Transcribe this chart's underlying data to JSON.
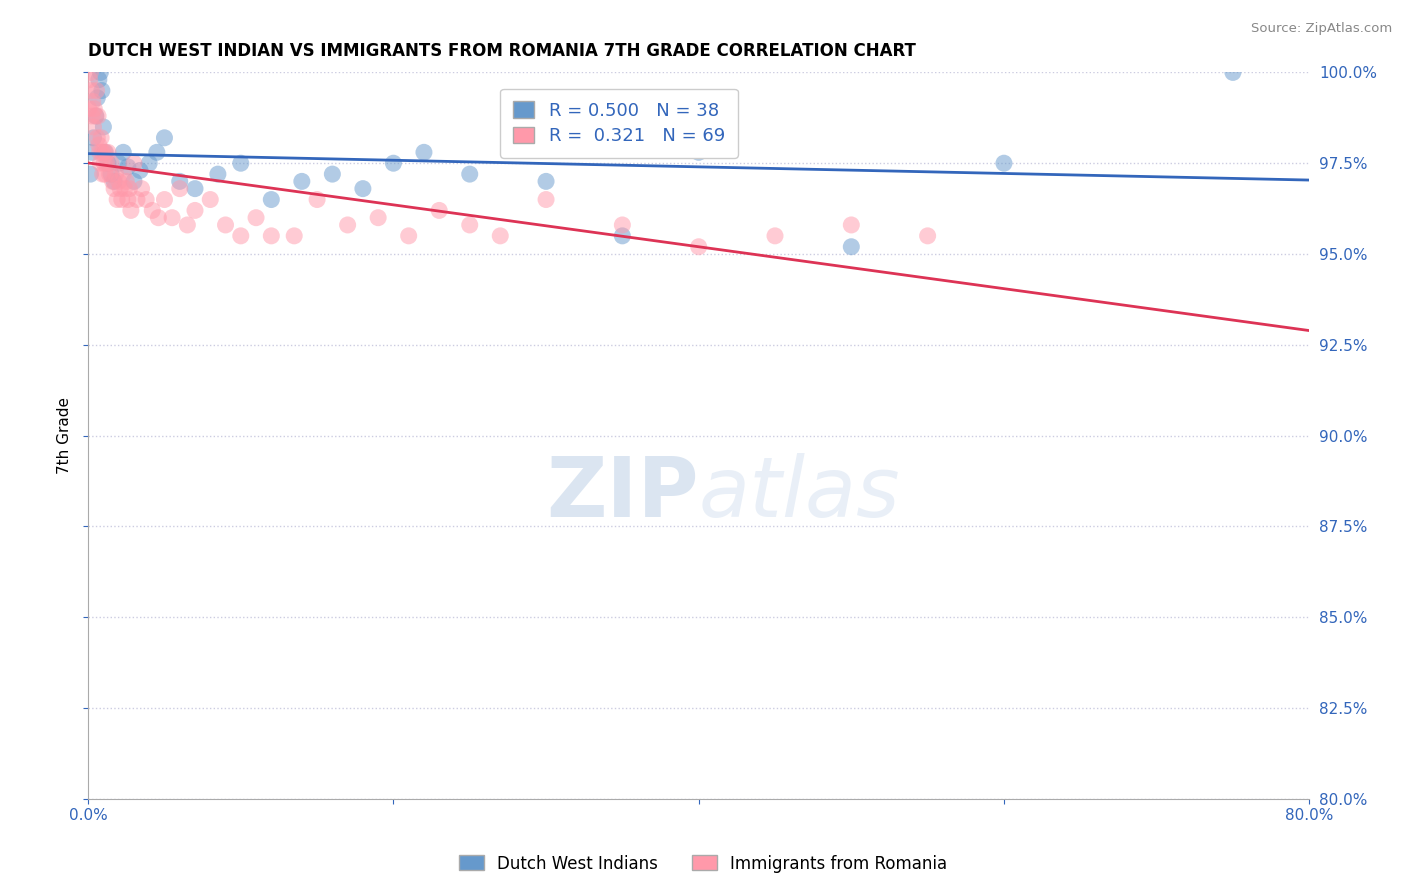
{
  "title": "DUTCH WEST INDIAN VS IMMIGRANTS FROM ROMANIA 7TH GRADE CORRELATION CHART",
  "source_text": "Source: ZipAtlas.com",
  "ylabel_text": "7th Grade",
  "xlim": [
    0.0,
    80.0
  ],
  "ylim": [
    80.0,
    100.0
  ],
  "xticks": [
    0.0,
    20.0,
    40.0,
    60.0,
    80.0
  ],
  "xtick_labels": [
    "0.0%",
    "",
    "",
    "",
    "80.0%"
  ],
  "ytick_labels": [
    "80.0%",
    "82.5%",
    "85.0%",
    "87.5%",
    "90.0%",
    "92.5%",
    "95.0%",
    "97.5%",
    "100.0%"
  ],
  "yticks": [
    80.0,
    82.5,
    85.0,
    87.5,
    90.0,
    92.5,
    95.0,
    97.5,
    100.0
  ],
  "blue_color": "#6699CC",
  "pink_color": "#FF99AA",
  "blue_line_color": "#3366BB",
  "pink_line_color": "#DD3355",
  "R_blue": 0.5,
  "N_blue": 38,
  "R_pink": 0.321,
  "N_pink": 69,
  "watermark_zip": "ZIP",
  "watermark_atlas": "atlas",
  "legend_label_blue": "Dutch West Indians",
  "legend_label_pink": "Immigrants from Romania",
  "blue_x": [
    0.15,
    0.25,
    0.35,
    0.5,
    0.6,
    0.7,
    0.8,
    0.9,
    1.0,
    1.1,
    1.3,
    1.5,
    1.7,
    2.0,
    2.3,
    2.6,
    3.0,
    3.4,
    4.0,
    4.5,
    5.0,
    6.0,
    7.0,
    8.5,
    10.0,
    12.0,
    14.0,
    16.0,
    18.0,
    20.0,
    22.0,
    25.0,
    30.0,
    35.0,
    40.0,
    50.0,
    60.0,
    75.0
  ],
  "blue_y": [
    97.2,
    97.8,
    98.2,
    98.8,
    99.3,
    99.8,
    100.0,
    99.5,
    98.5,
    97.8,
    97.5,
    97.2,
    97.0,
    97.5,
    97.8,
    97.4,
    97.0,
    97.3,
    97.5,
    97.8,
    98.2,
    97.0,
    96.8,
    97.2,
    97.5,
    96.5,
    97.0,
    97.2,
    96.8,
    97.5,
    97.8,
    97.2,
    97.0,
    95.5,
    97.8,
    95.2,
    97.5,
    100.0
  ],
  "pink_x": [
    0.05,
    0.1,
    0.15,
    0.2,
    0.25,
    0.3,
    0.35,
    0.4,
    0.5,
    0.55,
    0.6,
    0.65,
    0.7,
    0.75,
    0.8,
    0.85,
    0.9,
    0.95,
    1.0,
    1.05,
    1.1,
    1.15,
    1.2,
    1.3,
    1.4,
    1.5,
    1.6,
    1.7,
    1.8,
    1.9,
    2.0,
    2.1,
    2.2,
    2.3,
    2.4,
    2.5,
    2.6,
    2.7,
    2.8,
    3.0,
    3.2,
    3.5,
    3.8,
    4.2,
    4.6,
    5.0,
    5.5,
    6.0,
    6.5,
    7.0,
    8.0,
    9.0,
    10.0,
    11.0,
    12.0,
    13.5,
    15.0,
    17.0,
    19.0,
    21.0,
    23.0,
    25.0,
    27.0,
    30.0,
    35.0,
    40.0,
    45.0,
    50.0,
    55.0
  ],
  "pink_y": [
    99.0,
    99.8,
    100.0,
    99.5,
    98.8,
    99.2,
    98.5,
    99.0,
    98.8,
    99.5,
    98.2,
    98.8,
    98.0,
    97.8,
    97.5,
    98.2,
    97.8,
    97.2,
    97.8,
    97.5,
    97.2,
    97.8,
    97.5,
    97.8,
    97.2,
    97.5,
    97.0,
    96.8,
    97.2,
    96.5,
    97.0,
    96.8,
    96.5,
    97.2,
    96.8,
    97.0,
    96.5,
    96.8,
    96.2,
    97.5,
    96.5,
    96.8,
    96.5,
    96.2,
    96.0,
    96.5,
    96.0,
    96.8,
    95.8,
    96.2,
    96.5,
    95.8,
    95.5,
    96.0,
    95.5,
    95.5,
    96.5,
    95.8,
    96.0,
    95.5,
    96.2,
    95.8,
    95.5,
    96.5,
    95.8,
    95.2,
    95.5,
    95.8,
    95.5
  ]
}
